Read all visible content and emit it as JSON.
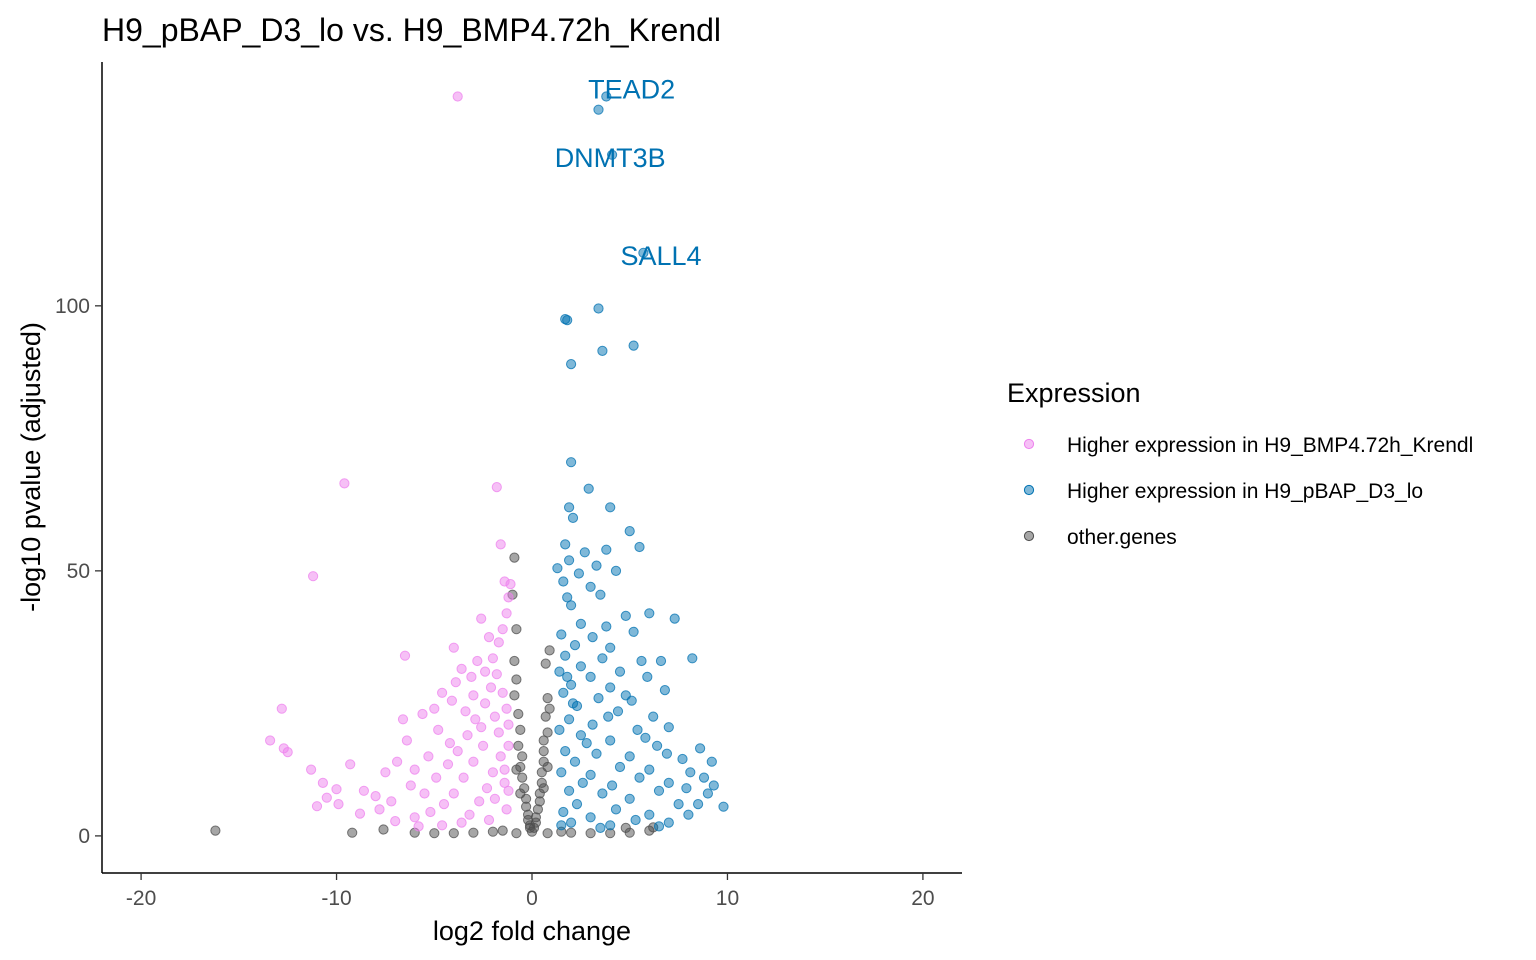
{
  "chart_data": {
    "type": "scatter",
    "title": "H9_pBAP_D3_lo vs. H9_BMP4.72h_Krendl",
    "xlabel": "log2 fold change",
    "ylabel": "-log10 pvalue (adjusted)",
    "xlim": [
      -22,
      22
    ],
    "ylim": [
      -7,
      146
    ],
    "xticks": [
      -20,
      -10,
      0,
      10,
      20
    ],
    "yticks": [
      0,
      50,
      100
    ],
    "xtick_labels": [
      "-20",
      "-10",
      "0",
      "10",
      "20"
    ],
    "ytick_labels": [
      "0",
      "50",
      "100"
    ],
    "grid": false,
    "legend": {
      "title": "Expression",
      "placement": "right"
    },
    "colors": {
      "higher_krendl": "#EE82EE",
      "higher_pbap": "#0072B2",
      "other": "#4D4D4D"
    },
    "series": [
      {
        "name": "Higher expression in H9_BMP4.72h_Krendl",
        "color": "#EE82EE",
        "points": [
          [
            -3.8,
            139.5
          ],
          [
            -9.6,
            66.5
          ],
          [
            -1.8,
            65.8
          ],
          [
            -11.2,
            49.0
          ],
          [
            -1.6,
            55.0
          ],
          [
            -1.4,
            48.0
          ],
          [
            -2.6,
            41.0
          ],
          [
            -2.2,
            37.5
          ],
          [
            -6.5,
            34.0
          ],
          [
            -4.0,
            35.5
          ],
          [
            -12.8,
            24.0
          ],
          [
            -13.4,
            18.0
          ],
          [
            -12.7,
            16.5
          ],
          [
            -12.5,
            15.8
          ],
          [
            -11.3,
            12.5
          ],
          [
            -9.3,
            13.5
          ],
          [
            -10.7,
            10.0
          ],
          [
            -10.0,
            8.8
          ],
          [
            -10.5,
            7.2
          ],
          [
            -8.6,
            8.5
          ],
          [
            -9.9,
            6.0
          ],
          [
            -11.0,
            5.6
          ],
          [
            -8.0,
            7.5
          ],
          [
            -7.5,
            12.0
          ],
          [
            -6.9,
            14.0
          ],
          [
            -6.4,
            18.0
          ],
          [
            -6.6,
            22.0
          ],
          [
            -5.6,
            23.0
          ],
          [
            -5.0,
            24.0
          ],
          [
            -4.6,
            27.0
          ],
          [
            -3.9,
            29.0
          ],
          [
            -3.6,
            31.5
          ],
          [
            -3.1,
            30.0
          ],
          [
            -2.8,
            33.0
          ],
          [
            -2.0,
            33.5
          ],
          [
            -1.7,
            36.5
          ],
          [
            -1.5,
            39.0
          ],
          [
            -1.3,
            42.0
          ],
          [
            -1.2,
            45.0
          ],
          [
            -1.1,
            47.5
          ],
          [
            -4.8,
            20.0
          ],
          [
            -4.2,
            17.5
          ],
          [
            -5.3,
            15.0
          ],
          [
            -6.0,
            12.5
          ],
          [
            -6.2,
            9.5
          ],
          [
            -7.2,
            6.5
          ],
          [
            -7.8,
            5.0
          ],
          [
            -8.8,
            4.2
          ],
          [
            -5.5,
            8.0
          ],
          [
            -4.9,
            11.0
          ],
          [
            -4.3,
            13.5
          ],
          [
            -3.8,
            16.0
          ],
          [
            -3.3,
            19.0
          ],
          [
            -2.9,
            22.0
          ],
          [
            -2.4,
            25.0
          ],
          [
            -2.1,
            28.0
          ],
          [
            -1.8,
            30.5
          ],
          [
            -1.5,
            27.0
          ],
          [
            -1.3,
            24.0
          ],
          [
            -1.2,
            21.0
          ],
          [
            -2.5,
            17.0
          ],
          [
            -3.0,
            14.0
          ],
          [
            -3.5,
            11.0
          ],
          [
            -4.0,
            8.0
          ],
          [
            -4.5,
            6.0
          ],
          [
            -5.2,
            4.5
          ],
          [
            -6.0,
            3.5
          ],
          [
            -7.0,
            2.8
          ],
          [
            -2.0,
            12.0
          ],
          [
            -2.3,
            9.0
          ],
          [
            -2.7,
            6.5
          ],
          [
            -3.2,
            4.0
          ],
          [
            -1.6,
            15.0
          ],
          [
            -1.4,
            10.0
          ],
          [
            -1.9,
            7.0
          ],
          [
            -1.3,
            5.0
          ],
          [
            -2.2,
            3.0
          ],
          [
            -3.6,
            2.5
          ],
          [
            -4.6,
            2.0
          ],
          [
            -5.8,
            1.8
          ],
          [
            -1.2,
            17.0
          ],
          [
            -1.7,
            19.5
          ],
          [
            -2.6,
            20.5
          ],
          [
            -3.4,
            23.5
          ],
          [
            -4.1,
            25.5
          ],
          [
            -3.0,
            26.5
          ],
          [
            -2.4,
            31.0
          ],
          [
            -1.9,
            22.5
          ],
          [
            -1.4,
            12.5
          ],
          [
            -1.2,
            8.5
          ]
        ]
      },
      {
        "name": "Higher expression in H9_pBAP_D3_lo",
        "color": "#0072B2",
        "points": [
          [
            3.8,
            139.5
          ],
          [
            3.4,
            137.0
          ],
          [
            4.1,
            128.5
          ],
          [
            5.7,
            110.0
          ],
          [
            3.4,
            99.5
          ],
          [
            1.7,
            97.5
          ],
          [
            1.8,
            97.3
          ],
          [
            3.6,
            91.5
          ],
          [
            5.2,
            92.5
          ],
          [
            2.0,
            89.0
          ],
          [
            2.0,
            70.5
          ],
          [
            2.9,
            65.5
          ],
          [
            1.9,
            62.0
          ],
          [
            4.0,
            62.0
          ],
          [
            2.1,
            60.0
          ],
          [
            5.0,
            57.5
          ],
          [
            1.7,
            55.0
          ],
          [
            5.5,
            54.5
          ],
          [
            3.8,
            54.0
          ],
          [
            1.9,
            52.0
          ],
          [
            2.7,
            53.5
          ],
          [
            1.3,
            50.5
          ],
          [
            3.3,
            51.0
          ],
          [
            2.4,
            49.5
          ],
          [
            1.6,
            48.0
          ],
          [
            4.3,
            50.0
          ],
          [
            3.0,
            47.0
          ],
          [
            1.8,
            45.0
          ],
          [
            3.5,
            45.5
          ],
          [
            2.0,
            43.5
          ],
          [
            6.0,
            42.0
          ],
          [
            4.8,
            41.5
          ],
          [
            7.3,
            41.0
          ],
          [
            3.8,
            39.5
          ],
          [
            2.5,
            40.0
          ],
          [
            1.5,
            38.0
          ],
          [
            5.2,
            38.5
          ],
          [
            3.1,
            37.5
          ],
          [
            2.2,
            36.0
          ],
          [
            4.0,
            35.5
          ],
          [
            1.7,
            34.0
          ],
          [
            3.6,
            33.5
          ],
          [
            5.6,
            33.0
          ],
          [
            8.2,
            33.5
          ],
          [
            2.5,
            32.0
          ],
          [
            6.6,
            33.0
          ],
          [
            1.4,
            31.0
          ],
          [
            4.5,
            31.0
          ],
          [
            3.0,
            30.0
          ],
          [
            5.9,
            30.0
          ],
          [
            2.0,
            28.5
          ],
          [
            4.0,
            28.0
          ],
          [
            6.8,
            27.5
          ],
          [
            1.6,
            27.0
          ],
          [
            3.4,
            26.0
          ],
          [
            5.1,
            25.5
          ],
          [
            2.3,
            24.5
          ],
          [
            4.4,
            23.5
          ],
          [
            6.2,
            22.5
          ],
          [
            1.9,
            22.0
          ],
          [
            3.1,
            21.0
          ],
          [
            7.0,
            20.5
          ],
          [
            5.4,
            20.0
          ],
          [
            2.5,
            19.0
          ],
          [
            4.0,
            18.0
          ],
          [
            8.6,
            16.5
          ],
          [
            6.4,
            17.0
          ],
          [
            1.7,
            16.0
          ],
          [
            3.3,
            15.5
          ],
          [
            5.0,
            15.0
          ],
          [
            7.7,
            14.5
          ],
          [
            2.2,
            14.0
          ],
          [
            4.5,
            13.0
          ],
          [
            9.2,
            14.0
          ],
          [
            6.0,
            12.5
          ],
          [
            1.5,
            12.0
          ],
          [
            3.0,
            11.5
          ],
          [
            8.1,
            12.0
          ],
          [
            5.5,
            11.0
          ],
          [
            2.6,
            10.0
          ],
          [
            7.0,
            10.0
          ],
          [
            4.1,
            9.5
          ],
          [
            9.0,
            8.0
          ],
          [
            6.5,
            8.5
          ],
          [
            1.9,
            8.5
          ],
          [
            3.6,
            8.0
          ],
          [
            9.8,
            5.5
          ],
          [
            8.5,
            6.0
          ],
          [
            5.0,
            7.0
          ],
          [
            2.3,
            6.0
          ],
          [
            7.5,
            6.0
          ],
          [
            4.3,
            5.0
          ],
          [
            1.6,
            4.5
          ],
          [
            6.0,
            4.0
          ],
          [
            3.0,
            3.5
          ],
          [
            8.0,
            4.0
          ],
          [
            5.3,
            3.0
          ],
          [
            2.0,
            2.5
          ],
          [
            7.0,
            2.5
          ],
          [
            4.0,
            2.0
          ],
          [
            1.5,
            2.0
          ],
          [
            6.5,
            1.8
          ],
          [
            3.5,
            1.5
          ],
          [
            9.3,
            9.5
          ],
          [
            8.8,
            11.0
          ],
          [
            7.9,
            9.0
          ],
          [
            1.8,
            30.0
          ],
          [
            2.1,
            25.0
          ],
          [
            1.4,
            20.0
          ],
          [
            2.8,
            17.5
          ],
          [
            3.9,
            22.5
          ],
          [
            4.8,
            26.5
          ],
          [
            5.8,
            18.5
          ],
          [
            6.9,
            15.5
          ]
        ]
      },
      {
        "name": "other.genes",
        "color": "#4D4D4D",
        "points": [
          [
            -16.2,
            1.0
          ],
          [
            -9.2,
            0.6
          ],
          [
            -7.6,
            1.2
          ],
          [
            -0.9,
            52.5
          ],
          [
            -1.0,
            45.5
          ],
          [
            -0.8,
            39.0
          ],
          [
            -0.9,
            33.0
          ],
          [
            -0.8,
            29.5
          ],
          [
            -0.9,
            26.5
          ],
          [
            -0.7,
            23.0
          ],
          [
            0.9,
            35.0
          ],
          [
            0.7,
            32.5
          ],
          [
            0.8,
            26.0
          ],
          [
            0.9,
            24.0
          ],
          [
            0.7,
            22.5
          ],
          [
            0.8,
            19.5
          ],
          [
            0.6,
            18.0
          ],
          [
            -0.6,
            20.0
          ],
          [
            -0.7,
            17.0
          ],
          [
            -0.5,
            15.0
          ],
          [
            -0.6,
            13.0
          ],
          [
            -0.5,
            11.0
          ],
          [
            -0.4,
            9.0
          ],
          [
            -0.3,
            7.0
          ],
          [
            -0.3,
            5.5
          ],
          [
            -0.2,
            4.0
          ],
          [
            -0.2,
            3.0
          ],
          [
            -0.1,
            2.0
          ],
          [
            -0.1,
            1.5
          ],
          [
            0.0,
            0.8
          ],
          [
            0.1,
            1.5
          ],
          [
            0.2,
            2.5
          ],
          [
            0.2,
            3.5
          ],
          [
            0.3,
            5.0
          ],
          [
            0.4,
            6.5
          ],
          [
            0.4,
            8.0
          ],
          [
            0.5,
            10.0
          ],
          [
            0.5,
            12.0
          ],
          [
            0.6,
            14.0
          ],
          [
            0.6,
            16.0
          ],
          [
            -2.0,
            0.8
          ],
          [
            -3.0,
            0.6
          ],
          [
            -4.0,
            0.5
          ],
          [
            -5.0,
            0.5
          ],
          [
            -6.0,
            0.6
          ],
          [
            2.0,
            0.6
          ],
          [
            3.0,
            0.5
          ],
          [
            4.0,
            0.5
          ],
          [
            5.0,
            0.6
          ],
          [
            6.0,
            1.0
          ],
          [
            -1.5,
            1.0
          ],
          [
            1.5,
            0.8
          ],
          [
            -0.8,
            0.5
          ],
          [
            0.8,
            0.5
          ],
          [
            -0.6,
            8.0
          ],
          [
            0.6,
            9.0
          ],
          [
            -0.8,
            12.5
          ],
          [
            0.8,
            13.0
          ],
          [
            4.8,
            1.5
          ],
          [
            6.2,
            1.6
          ]
        ]
      }
    ],
    "annotations": [
      {
        "text": "TEAD2",
        "x": 5.1,
        "y": 140.5,
        "color": "#0072B2"
      },
      {
        "text": "DNMT3B",
        "x": 4.0,
        "y": 127.5,
        "color": "#0072B2"
      },
      {
        "text": "SALL4",
        "x": 6.6,
        "y": 109.0,
        "color": "#0072B2"
      }
    ]
  }
}
